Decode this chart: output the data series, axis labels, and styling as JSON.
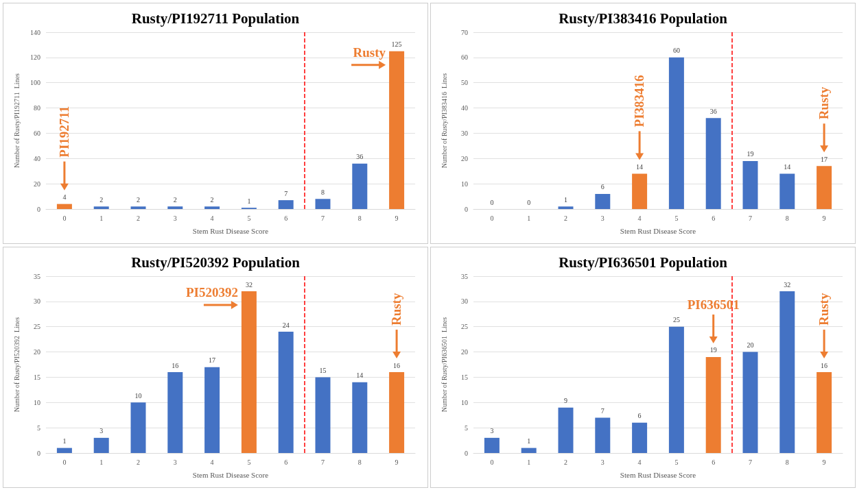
{
  "chart_data": [
    {
      "type": "bar",
      "title": "Rusty/PI192711 Population",
      "xlabel": "Stem Rust Disease Score",
      "ylabel": "Number of Rusty/PI192711  Lines",
      "x": [
        0,
        1,
        2,
        3,
        4,
        5,
        6,
        7,
        8,
        9
      ],
      "values": [
        4,
        2,
        2,
        2,
        2,
        1,
        7,
        8,
        36,
        125
      ],
      "colors": [
        "#ed7d31",
        "#4472c4",
        "#4472c4",
        "#4472c4",
        "#4472c4",
        "#4472c4",
        "#4472c4",
        "#4472c4",
        "#4472c4",
        "#ed7d31"
      ],
      "xlim": [
        -0.5,
        9.5
      ],
      "xticks": [
        0,
        1,
        2,
        3,
        4,
        5,
        6,
        7,
        8,
        9
      ],
      "ylim": [
        0,
        140
      ],
      "yticks": [
        0,
        20,
        40,
        60,
        80,
        100,
        120,
        140
      ],
      "grid": "y",
      "data_labels": true,
      "ref_lines": [
        {
          "axis": "x",
          "value": 6.5,
          "color": "#ff0000",
          "line_style": "dashed"
        }
      ],
      "annotations": [
        "PI192711",
        "Rusty"
      ]
    },
    {
      "type": "bar",
      "title": "Rusty/PI383416 Population",
      "xlabel": "Stem Rust Disease Score",
      "ylabel": "Number of Rusty/PI383416  Lines",
      "x": [
        0,
        1,
        2,
        3,
        4,
        5,
        6,
        7,
        8,
        9
      ],
      "values": [
        0,
        0,
        1,
        6,
        14,
        60,
        36,
        19,
        14,
        17
      ],
      "colors": [
        "#4472c4",
        "#4472c4",
        "#4472c4",
        "#4472c4",
        "#ed7d31",
        "#4472c4",
        "#4472c4",
        "#4472c4",
        "#4472c4",
        "#ed7d31"
      ],
      "xlim": [
        -0.5,
        9.5
      ],
      "xticks": [
        0,
        1,
        2,
        3,
        4,
        5,
        6,
        7,
        8,
        9
      ],
      "ylim": [
        0,
        70
      ],
      "yticks": [
        0,
        10,
        20,
        30,
        40,
        50,
        60,
        70
      ],
      "grid": "y",
      "data_labels": true,
      "ref_lines": [
        {
          "axis": "x",
          "value": 6.5,
          "color": "#ff0000",
          "line_style": "dashed"
        }
      ],
      "annotations": [
        "PI383416",
        "Rusty"
      ]
    },
    {
      "type": "bar",
      "title": "Rusty/PI520392 Population",
      "xlabel": "Stem Rust Disease Score",
      "ylabel": "Number of Rusty/PI520392  Lines",
      "x": [
        0,
        1,
        2,
        3,
        4,
        5,
        6,
        7,
        8,
        9
      ],
      "values": [
        1,
        3,
        10,
        16,
        17,
        32,
        24,
        15,
        14,
        16
      ],
      "colors": [
        "#4472c4",
        "#4472c4",
        "#4472c4",
        "#4472c4",
        "#4472c4",
        "#ed7d31",
        "#4472c4",
        "#4472c4",
        "#4472c4",
        "#ed7d31"
      ],
      "xlim": [
        -0.5,
        9.5
      ],
      "xticks": [
        0,
        1,
        2,
        3,
        4,
        5,
        6,
        7,
        8,
        9
      ],
      "ylim": [
        0,
        35
      ],
      "yticks": [
        0,
        5,
        10,
        15,
        20,
        25,
        30,
        35
      ],
      "grid": "y",
      "data_labels": true,
      "ref_lines": [
        {
          "axis": "x",
          "value": 6.5,
          "color": "#ff0000",
          "line_style": "dashed"
        }
      ],
      "annotations": [
        "PI520392",
        "Rusty"
      ]
    },
    {
      "type": "bar",
      "title": "Rusty/PI636501 Population",
      "xlabel": "Stem Rust Disease Score",
      "ylabel": "Number of Rusty/PI636501  Lines",
      "x": [
        0,
        1,
        2,
        3,
        4,
        5,
        6,
        7,
        8,
        9
      ],
      "values": [
        3,
        1,
        9,
        7,
        6,
        25,
        19,
        20,
        32,
        16
      ],
      "colors": [
        "#4472c4",
        "#4472c4",
        "#4472c4",
        "#4472c4",
        "#4472c4",
        "#4472c4",
        "#ed7d31",
        "#4472c4",
        "#4472c4",
        "#ed7d31"
      ],
      "xlim": [
        -0.5,
        9.5
      ],
      "xticks": [
        0,
        1,
        2,
        3,
        4,
        5,
        6,
        7,
        8,
        9
      ],
      "ylim": [
        0,
        35
      ],
      "yticks": [
        0,
        5,
        10,
        15,
        20,
        25,
        30,
        35
      ],
      "grid": "y",
      "data_labels": true,
      "ref_lines": [
        {
          "axis": "x",
          "value": 6.5,
          "color": "#ff0000",
          "line_style": "dashed"
        }
      ],
      "annotations": [
        "PI636501",
        "Rusty"
      ]
    }
  ]
}
